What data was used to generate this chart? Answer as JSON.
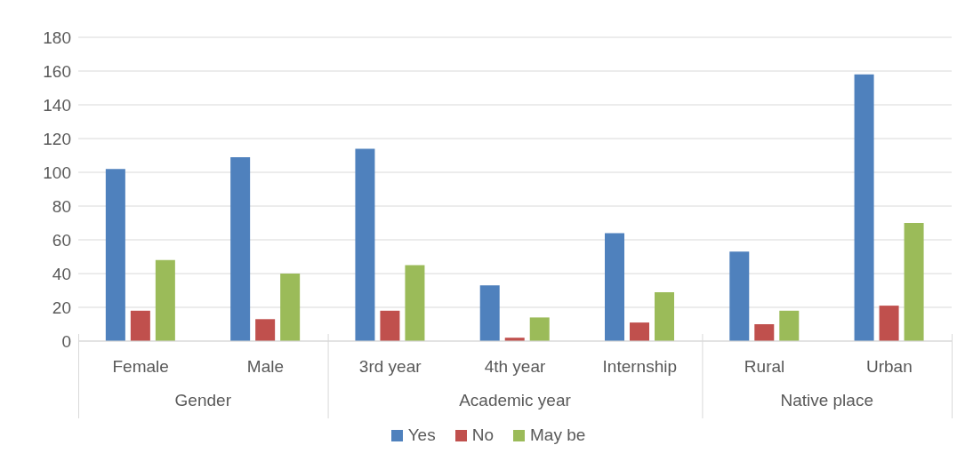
{
  "chart_data": {
    "type": "bar",
    "categories": [
      "Female",
      "Male",
      "3rd year",
      "4th year",
      "Internship",
      "Rural",
      "Urban"
    ],
    "series": [
      {
        "name": "Yes",
        "color": "#4f81bd",
        "values": [
          102,
          109,
          114,
          33,
          64,
          53,
          158
        ]
      },
      {
        "name": "No",
        "color": "#c0504d",
        "values": [
          18,
          13,
          18,
          2,
          11,
          10,
          21
        ]
      },
      {
        "name": "May be",
        "color": "#9bbb59",
        "values": [
          48,
          40,
          45,
          14,
          29,
          18,
          70
        ]
      }
    ],
    "annotations": [
      "Gender",
      "Academic year",
      "Native place"
    ],
    "ylim": [
      0,
      180
    ],
    "yticks": [
      0,
      20,
      40,
      60,
      80,
      100,
      120,
      140,
      160,
      180
    ],
    "grid": "y",
    "legend": "bottom"
  }
}
